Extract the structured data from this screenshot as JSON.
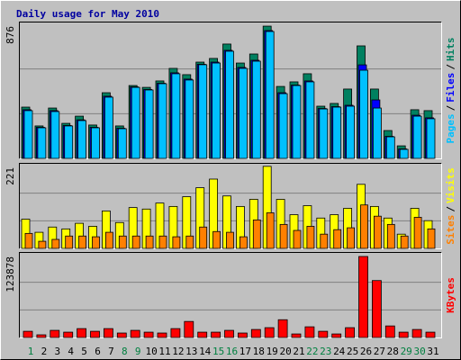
{
  "chart_data": {
    "type": "bar",
    "title": "Daily usage for May 2010",
    "legend_separator": "/",
    "categories": [
      "1",
      "2",
      "3",
      "4",
      "5",
      "6",
      "7",
      "8",
      "9",
      "10",
      "11",
      "12",
      "13",
      "14",
      "15",
      "16",
      "17",
      "18",
      "19",
      "20",
      "21",
      "22",
      "23",
      "24",
      "25",
      "26",
      "27",
      "28",
      "29",
      "30",
      "31"
    ],
    "category_colors": [
      "#008040",
      "#000000",
      "#000000",
      "#000000",
      "#000000",
      "#000000",
      "#000000",
      "#008040",
      "#008040",
      "#000000",
      "#000000",
      "#000000",
      "#000000",
      "#000000",
      "#008040",
      "#008040",
      "#000000",
      "#000000",
      "#000000",
      "#000000",
      "#000000",
      "#008040",
      "#008040",
      "#000000",
      "#000000",
      "#000000",
      "#000000",
      "#000000",
      "#008040",
      "#008040",
      "#000000"
    ],
    "panels": [
      {
        "ylim": [
          0,
          876
        ],
        "yticks": [
          876
        ],
        "grid_divisions": 3,
        "series": [
          {
            "name": "Hits",
            "color": "#008060",
            "values": [
              335,
              212,
              329,
              229,
              276,
              218,
              429,
              212,
              476,
              464,
              506,
              588,
              547,
              629,
              653,
              747,
              623,
              682,
              864,
              470,
              500,
              553,
              341,
              359,
              453,
              735,
              453,
              182,
              82,
              318,
              312
            ]
          },
          {
            "name": "Files",
            "color": "#0000ff",
            "values": [
              318,
              203,
              312,
              215,
              252,
              203,
              406,
              197,
              467,
              450,
              491,
              559,
              518,
              615,
              629,
              706,
              594,
              641,
              835,
              429,
              479,
              506,
              326,
              338,
              347,
              611,
              382,
              144,
              62,
              282,
              265
            ]
          },
          {
            "name": "Pages",
            "color": "#00c0ff",
            "values": [
              312,
              200,
              306,
              212,
              247,
              200,
              400,
              194,
              464,
              447,
              488,
              553,
              512,
              612,
              623,
              700,
              588,
              635,
              829,
              423,
              476,
              500,
              323,
              335,
              341,
              576,
              329,
              141,
              59,
              276,
              259
            ]
          }
        ]
      },
      {
        "ylim": [
          0,
          221
        ],
        "yticks": [
          221
        ],
        "grid_divisions": 3,
        "series": [
          {
            "name": "Visits",
            "color": "#ffff00",
            "values": [
              78,
              43,
              57,
              52,
              67,
              59,
              100,
              69,
              109,
              105,
              121,
              112,
              138,
              162,
              185,
              140,
              112,
              131,
              219,
              131,
              90,
              114,
              81,
              90,
              107,
              171,
              112,
              81,
              38,
              107,
              74
            ]
          },
          {
            "name": "Sites",
            "color": "#ff8000",
            "values": [
              40,
              19,
              24,
              33,
              33,
              31,
              43,
              33,
              33,
              33,
              33,
              31,
              33,
              57,
              45,
              43,
              31,
              76,
              95,
              64,
              48,
              59,
              38,
              50,
              55,
              116,
              86,
              64,
              33,
              83,
              52
            ]
          }
        ]
      },
      {
        "ylim": [
          0,
          123878
        ],
        "yticks": [
          123878
        ],
        "grid_divisions": 3,
        "series": [
          {
            "name": "KBytes",
            "color": "#ff0000",
            "values": [
              9300,
              4000,
              10700,
              8000,
              13300,
              9300,
              13300,
              6700,
              10700,
              8000,
              6700,
              13300,
              24000,
              8000,
              8000,
              10700,
              6700,
              12000,
              14700,
              26600,
              5300,
              16000,
              9300,
              5300,
              14700,
              121200,
              85200,
              17300,
              8000,
              12000,
              8000
            ]
          }
        ]
      }
    ]
  }
}
